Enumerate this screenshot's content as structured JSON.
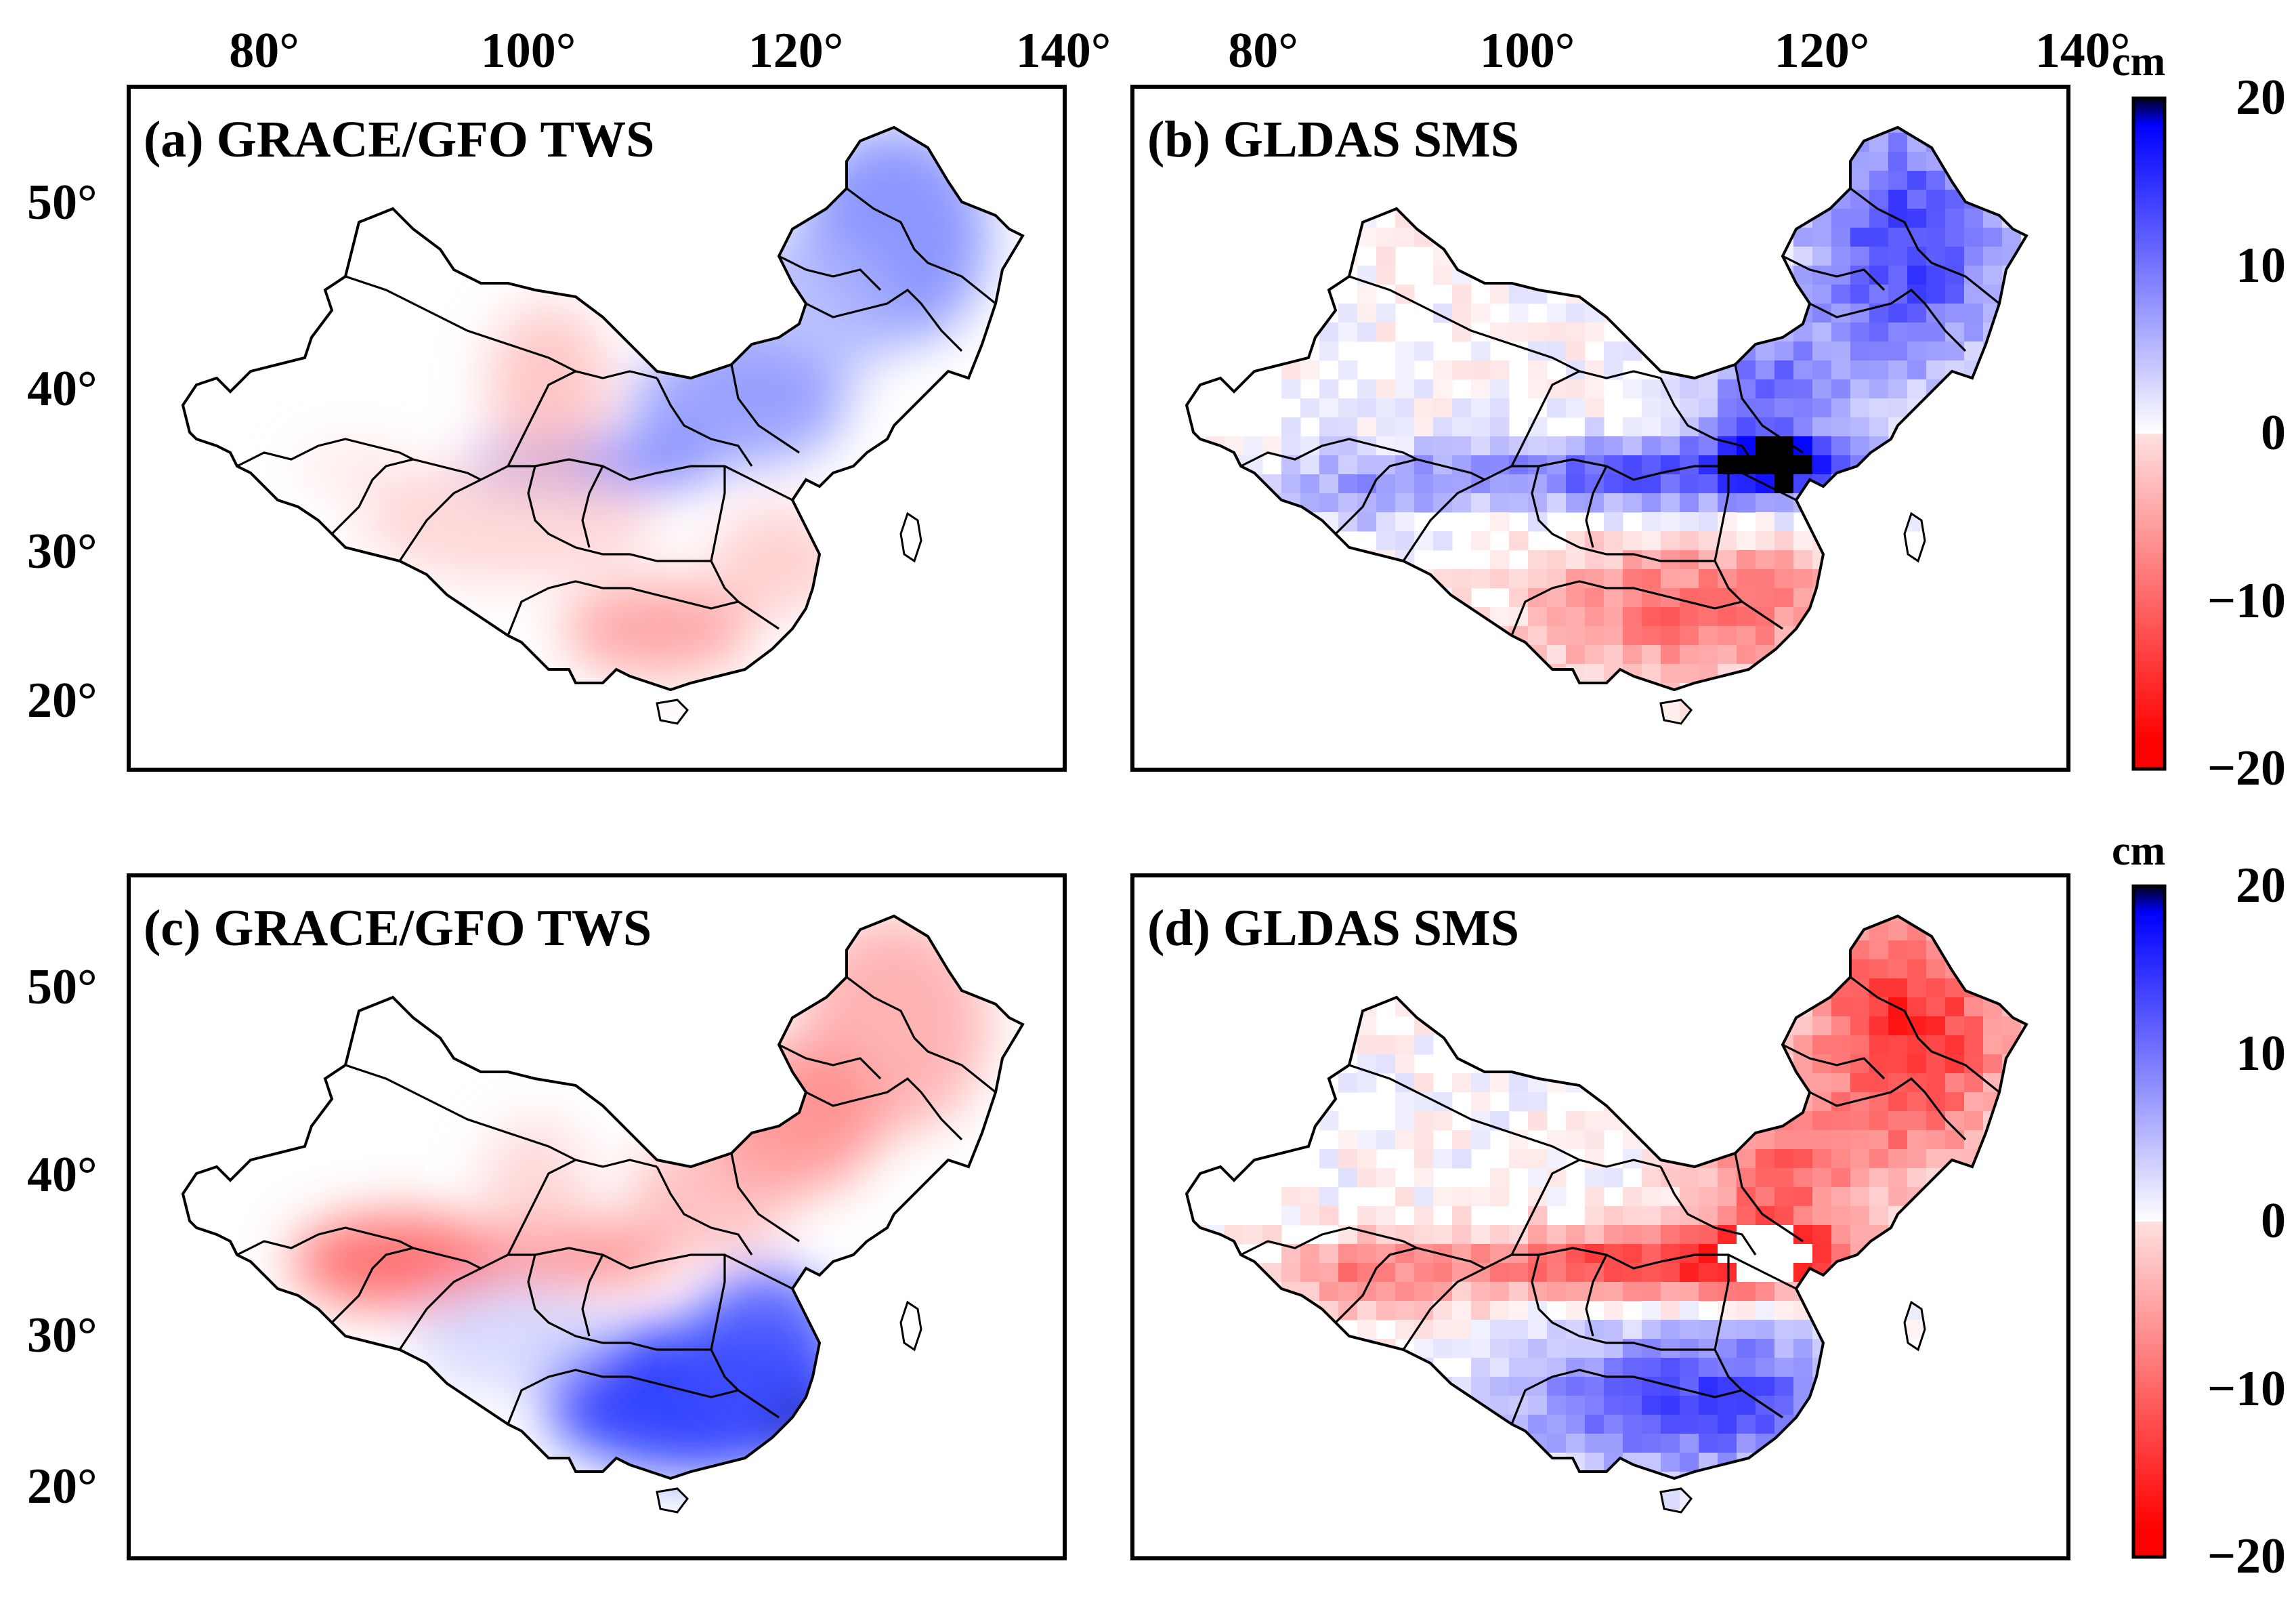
{
  "unit": "cm",
  "colors": {
    "positive": "#0000ff",
    "negative": "#ff0000",
    "neutral": "#ffffff",
    "extreme": "#000000"
  },
  "lon_ticks": [
    "80°",
    "100°",
    "120°",
    "140°"
  ],
  "lat_ticks": [
    "50°",
    "40°",
    "30°",
    "20°"
  ],
  "colorbar_ticks": [
    "20",
    "10",
    "0",
    "−10",
    "−20"
  ],
  "colorbar_range": [
    -20,
    20
  ],
  "panels": [
    {
      "id": "a",
      "title": "(a) GRACE/GFO TWS",
      "pattern": "smooth"
    },
    {
      "id": "b",
      "title": "(b) GLDAS SMS",
      "pattern": "grid"
    },
    {
      "id": "c",
      "title": "(c) GRACE/GFO TWS",
      "pattern": "smooth"
    },
    {
      "id": "d",
      "title": "(d) GLDAS SMS",
      "pattern": "grid"
    }
  ]
}
